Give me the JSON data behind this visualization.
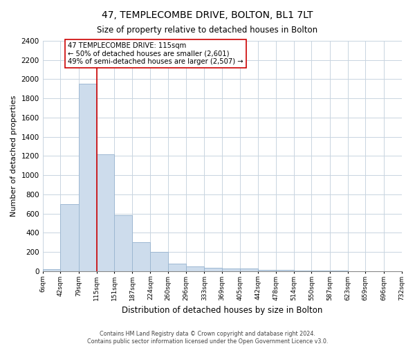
{
  "title": "47, TEMPLECOMBE DRIVE, BOLTON, BL1 7LT",
  "subtitle": "Size of property relative to detached houses in Bolton",
  "xlabel": "Distribution of detached houses by size in Bolton",
  "ylabel": "Number of detached properties",
  "bin_edges": [
    6,
    42,
    79,
    115,
    151,
    187,
    224,
    260,
    296,
    333,
    369,
    405,
    442,
    478,
    514,
    550,
    587,
    623,
    659,
    696,
    732
  ],
  "bin_counts": [
    20,
    700,
    1950,
    1220,
    580,
    300,
    200,
    80,
    45,
    35,
    25,
    30,
    15,
    10,
    5,
    3,
    2,
    1,
    1,
    1
  ],
  "bar_color": "#cddcec",
  "bar_edge_color": "#9db8d2",
  "vline_x": 115,
  "vline_color": "#cc0000",
  "ylim": [
    0,
    2400
  ],
  "yticks": [
    0,
    200,
    400,
    600,
    800,
    1000,
    1200,
    1400,
    1600,
    1800,
    2000,
    2200,
    2400
  ],
  "annotation_title": "47 TEMPLECOMBE DRIVE: 115sqm",
  "annotation_line1": "← 50% of detached houses are smaller (2,601)",
  "annotation_line2": "49% of semi-detached houses are larger (2,507) →",
  "tick_labels": [
    "6sqm",
    "42sqm",
    "79sqm",
    "115sqm",
    "151sqm",
    "187sqm",
    "224sqm",
    "260sqm",
    "296sqm",
    "333sqm",
    "369sqm",
    "405sqm",
    "442sqm",
    "478sqm",
    "514sqm",
    "550sqm",
    "587sqm",
    "623sqm",
    "659sqm",
    "696sqm",
    "732sqm"
  ],
  "footer_line1": "Contains HM Land Registry data © Crown copyright and database right 2024.",
  "footer_line2": "Contains public sector information licensed under the Open Government Licence v3.0.",
  "background_color": "#ffffff",
  "grid_color": "#c8d4e0"
}
